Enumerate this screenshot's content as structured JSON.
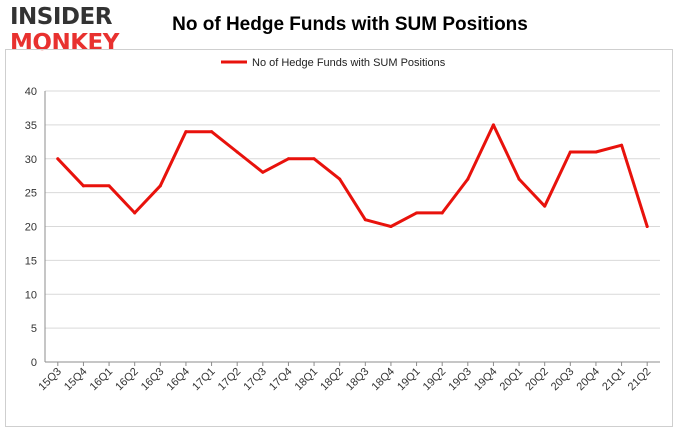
{
  "brand": {
    "line1": "INSIDER",
    "line2": "MONKEY"
  },
  "chart_data": {
    "type": "line",
    "title": "No of Hedge Funds with SUM Positions",
    "xlabel": "",
    "ylabel": "",
    "categories": [
      "15Q3",
      "15Q4",
      "16Q1",
      "16Q2",
      "16Q3",
      "16Q4",
      "17Q1",
      "17Q2",
      "17Q3",
      "17Q4",
      "18Q1",
      "18Q2",
      "18Q3",
      "18Q4",
      "19Q1",
      "19Q2",
      "19Q3",
      "19Q4",
      "20Q1",
      "20Q2",
      "20Q3",
      "20Q4",
      "21Q1",
      "21Q2"
    ],
    "series": [
      {
        "name": "No of Hedge Funds with SUM Positions",
        "values": [
          30,
          26,
          26,
          22,
          26,
          34,
          34,
          31,
          28,
          30,
          30,
          27,
          21,
          20,
          22,
          22,
          27,
          35,
          27,
          23,
          31,
          31,
          32,
          20
        ]
      }
    ],
    "ylim": [
      0,
      40
    ],
    "yticks": [
      0,
      5,
      10,
      15,
      20,
      25,
      30,
      35,
      40
    ],
    "grid": true,
    "legend": "top-center",
    "colors": {
      "line": "#e8120c",
      "grid": "#d9d9d9",
      "axis": "#8c8c8c"
    }
  }
}
